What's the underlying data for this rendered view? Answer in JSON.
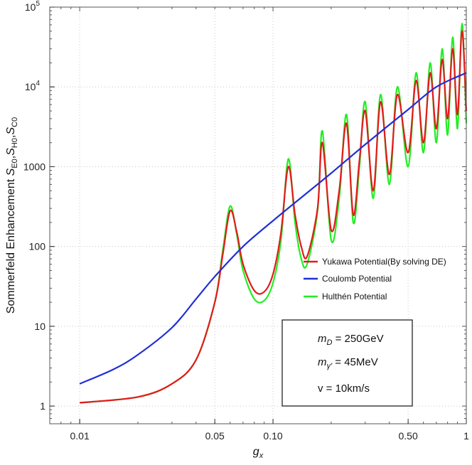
{
  "chart_data": {
    "type": "line",
    "xscale": "log",
    "yscale": "log",
    "xlabel": "g",
    "xlabel_sub": "x",
    "ylabel_parts": [
      {
        "t": "Sommerfeld Enhancement "
      },
      {
        "t": "S",
        "i": true
      },
      {
        "t": "E0",
        "s": true
      },
      {
        "t": ","
      },
      {
        "t": "S",
        "i": true
      },
      {
        "t": "H0",
        "s": true
      },
      {
        "t": ","
      },
      {
        "t": "S",
        "i": true
      },
      {
        "t": "C0",
        "s": true
      }
    ],
    "xlim": [
      0.007,
      1.0
    ],
    "ylim": [
      0.6,
      100000
    ],
    "grid": true,
    "grid_style": "dotted",
    "x_major_ticks": [
      {
        "v": 0.01,
        "label": "0.01"
      },
      {
        "v": 0.05,
        "label": "0.05"
      },
      {
        "v": 0.1,
        "label": "0.10"
      },
      {
        "v": 0.5,
        "label": "0.50"
      },
      {
        "v": 1,
        "label": "1"
      }
    ],
    "y_major_ticks": [
      {
        "v": 1,
        "label": "1"
      },
      {
        "v": 10,
        "label": "10"
      },
      {
        "v": 100,
        "label": "100"
      },
      {
        "v": 1000,
        "label": "1000"
      },
      {
        "v": 10000,
        "label": "10",
        "exp": "4"
      },
      {
        "v": 100000,
        "label": "10",
        "exp": "5"
      }
    ],
    "legend_placement": "right",
    "series": [
      {
        "name": "Yukawa Potential(By solving DE)",
        "color": "#e41a1c",
        "x": [
          0.01,
          0.02,
          0.03,
          0.04,
          0.05,
          0.055,
          0.06,
          0.065,
          0.07,
          0.08,
          0.09,
          0.1,
          0.11,
          0.12,
          0.13,
          0.14,
          0.15,
          0.17,
          0.18,
          0.2,
          0.22,
          0.24,
          0.26,
          0.28,
          0.3,
          0.33,
          0.36,
          0.4,
          0.44,
          0.5,
          0.55,
          0.6,
          0.65,
          0.7,
          0.75,
          0.8,
          0.85,
          0.9,
          0.95,
          1.0
        ],
        "y": [
          1.1,
          1.3,
          1.9,
          3.8,
          20,
          80,
          280,
          150,
          60,
          28,
          27,
          45,
          150,
          1000,
          250,
          100,
          75,
          300,
          2000,
          160,
          500,
          3500,
          250,
          1200,
          5000,
          500,
          6500,
          800,
          8000,
          1500,
          12000,
          2000,
          15000,
          3000,
          22000,
          4000,
          30000,
          4500,
          50000,
          5000
        ]
      },
      {
        "name": "Coulomb Potential",
        "color": "#1f2fd6",
        "x": [
          0.01,
          0.015,
          0.02,
          0.03,
          0.04,
          0.05,
          0.07,
          0.1,
          0.15,
          0.2,
          0.3,
          0.5,
          0.7,
          1.0
        ],
        "y": [
          1.9,
          2.9,
          4.4,
          9.6,
          22,
          42,
          100,
          210,
          470,
          830,
          1900,
          5200,
          10000,
          15000
        ]
      },
      {
        "name": "Hulthén Potential",
        "color": "#22ee22",
        "x": [
          0.01,
          0.02,
          0.03,
          0.04,
          0.05,
          0.055,
          0.06,
          0.065,
          0.07,
          0.08,
          0.09,
          0.1,
          0.11,
          0.12,
          0.13,
          0.14,
          0.15,
          0.17,
          0.18,
          0.2,
          0.22,
          0.24,
          0.26,
          0.28,
          0.3,
          0.33,
          0.36,
          0.4,
          0.44,
          0.5,
          0.55,
          0.6,
          0.65,
          0.7,
          0.75,
          0.8,
          0.85,
          0.9,
          0.95,
          1.0
        ],
        "y": [
          1.1,
          1.3,
          1.9,
          3.8,
          20,
          90,
          320,
          140,
          50,
          22,
          21,
          35,
          120,
          1250,
          200,
          70,
          60,
          280,
          2800,
          120,
          400,
          4500,
          200,
          1000,
          6500,
          400,
          8000,
          600,
          10000,
          1000,
          15000,
          1500,
          20000,
          2000,
          30000,
          2500,
          42000,
          3000,
          62000,
          3500
        ]
      }
    ],
    "annotation_box": {
      "lines": [
        {
          "main": "m",
          "sub": "D",
          "rest": " = 250GeV"
        },
        {
          "main": "m",
          "sub": "γ'",
          "rest": " = 45MeV"
        },
        {
          "main": "",
          "sub": "",
          "rest": "v = 10km/s"
        }
      ]
    }
  }
}
